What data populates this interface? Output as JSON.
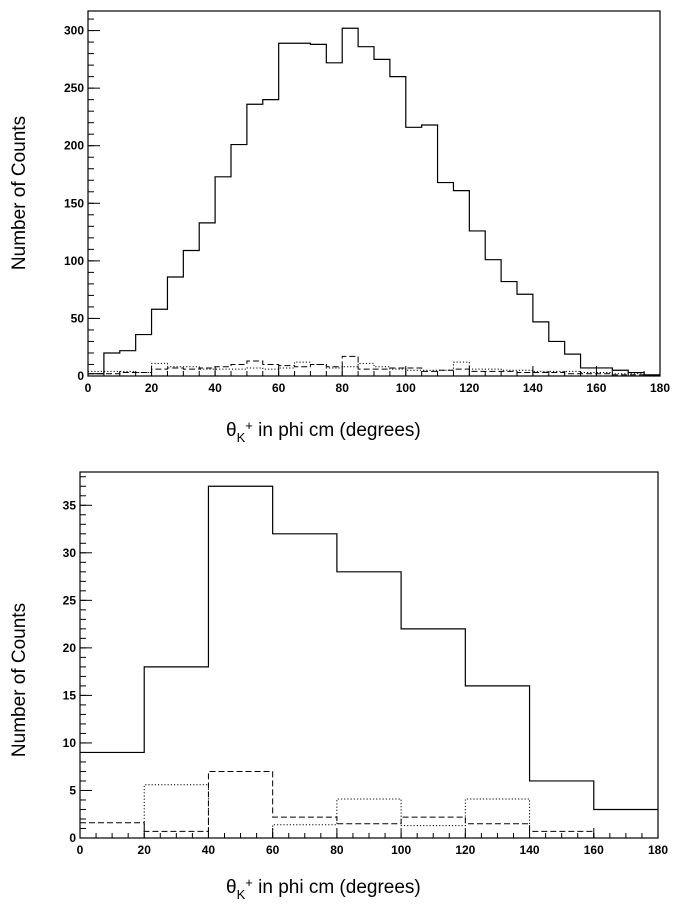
{
  "chart_data": [
    {
      "type": "histogram",
      "ylabel": "Number of Counts",
      "xlabel_parts": {
        "theta": "θ",
        "sub": "K",
        "sup": "+",
        "rest": " in phi cm (degrees)"
      },
      "xlim": [
        0,
        180
      ],
      "ylim": [
        0,
        317
      ],
      "x_ticks": [
        0,
        20,
        40,
        60,
        80,
        100,
        120,
        140,
        160,
        180
      ],
      "y_ticks": [
        0,
        50,
        100,
        150,
        200,
        250,
        300
      ],
      "bin_width": 5,
      "series": [
        {
          "style": "solid",
          "values": [
            2,
            20,
            22,
            36,
            58,
            86,
            109,
            133,
            173,
            201,
            236,
            240,
            289,
            289,
            288,
            272,
            302,
            286,
            275,
            260,
            216,
            218,
            168,
            161,
            126,
            101,
            82,
            71,
            47,
            30,
            19,
            7,
            7,
            5,
            3,
            1
          ]
        },
        {
          "style": "dashed",
          "values": [
            2,
            2,
            3,
            3,
            6,
            7,
            6,
            7,
            8,
            10,
            13,
            10,
            9,
            8,
            10,
            8,
            17,
            6,
            6,
            7,
            7,
            4,
            5,
            6,
            4,
            4,
            4,
            3,
            3,
            3,
            2,
            2,
            2,
            1,
            1,
            0
          ]
        },
        {
          "style": "dotted",
          "values": [
            4,
            4,
            4,
            3,
            11,
            8,
            8,
            6,
            6,
            6,
            7,
            6,
            7,
            12,
            10,
            7,
            8,
            11,
            8,
            6,
            5,
            5,
            5,
            12,
            6,
            6,
            5,
            5,
            4,
            4,
            4,
            3,
            3,
            2,
            2,
            1
          ]
        }
      ]
    },
    {
      "type": "histogram",
      "ylabel": "Number of Counts",
      "xlabel_parts": {
        "theta": "θ",
        "sub": "K",
        "sup": "+",
        "rest": " in phi cm (degrees)"
      },
      "xlim": [
        0,
        180
      ],
      "ylim": [
        0,
        38.5
      ],
      "x_ticks": [
        0,
        20,
        40,
        60,
        80,
        100,
        120,
        140,
        160,
        180
      ],
      "y_ticks": [
        0,
        5,
        10,
        15,
        20,
        25,
        30,
        35
      ],
      "bin_width": 20,
      "series": [
        {
          "style": "solid",
          "values": [
            9,
            18,
            37,
            32,
            28,
            22,
            16,
            6,
            3
          ]
        },
        {
          "style": "dashed",
          "values": [
            1.6,
            0.7,
            7,
            2.2,
            1.5,
            2.2,
            1.5,
            0.7,
            0
          ]
        },
        {
          "style": "dotted",
          "values": [
            0,
            5.6,
            0,
            1.4,
            4.1,
            1.3,
            4.1,
            0,
            0
          ]
        }
      ]
    }
  ]
}
